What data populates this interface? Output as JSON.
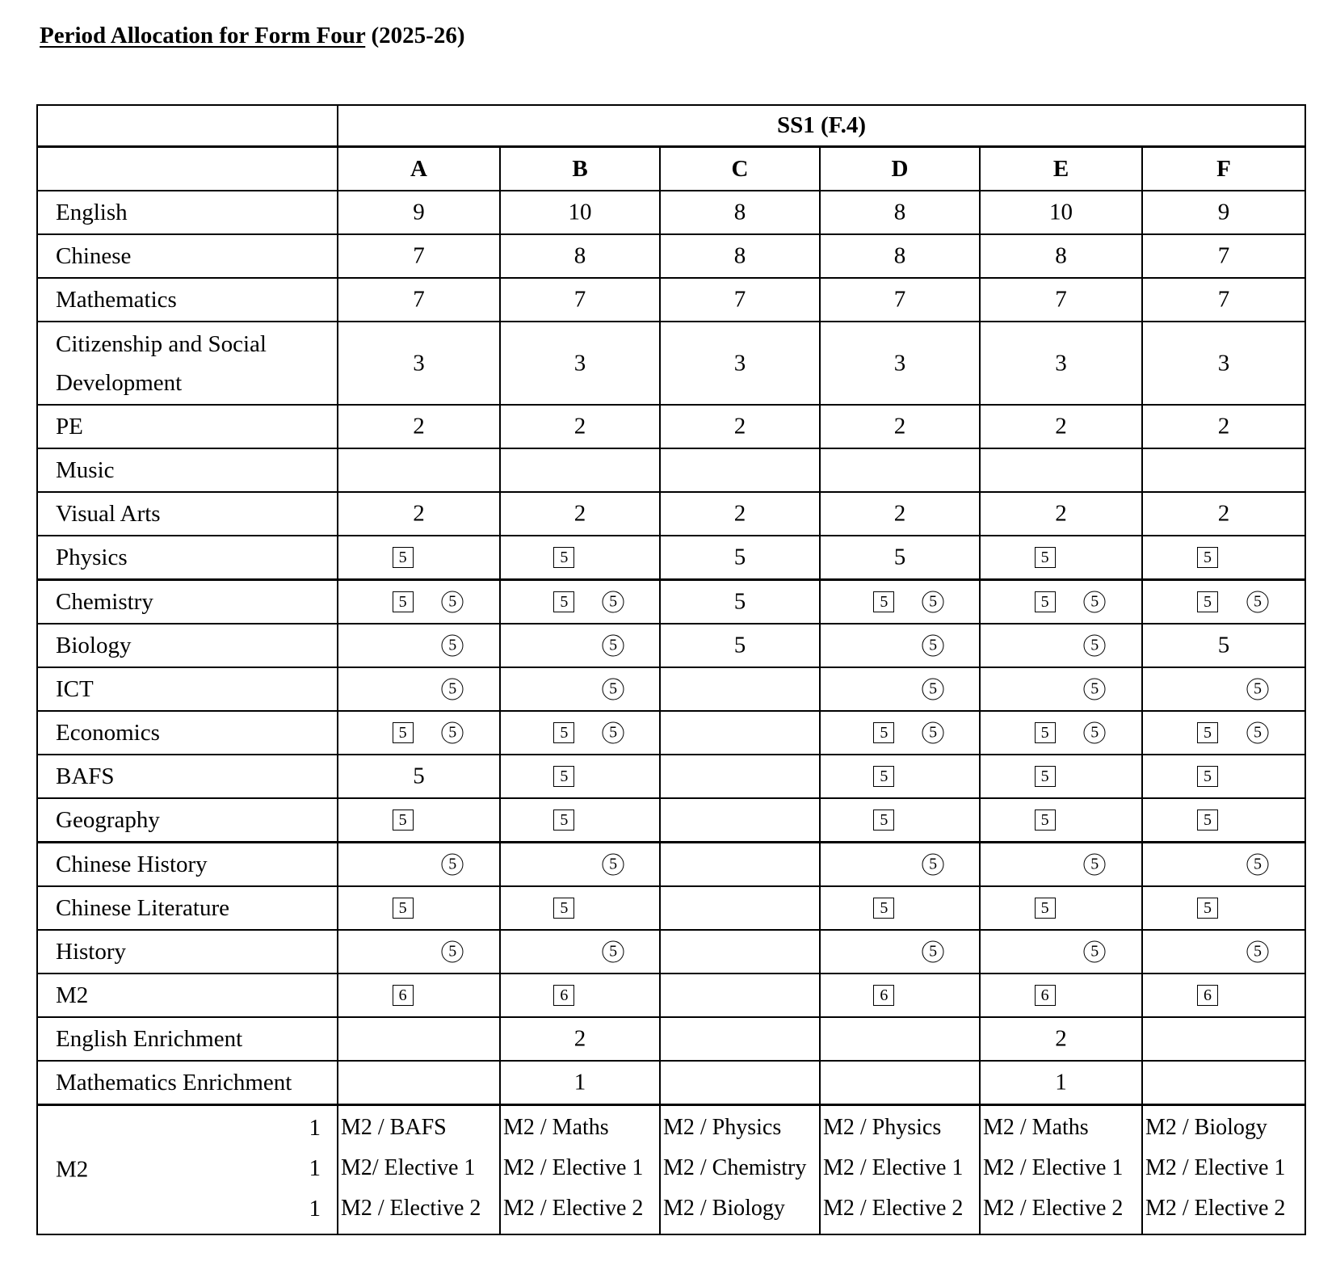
{
  "title": {
    "underlined": "Period Allocation for Form Four",
    "suffix": " (2025-26)"
  },
  "table": {
    "group_header": "SS1 (F.4)",
    "columns": [
      "A",
      "B",
      "C",
      "D",
      "E",
      "F"
    ],
    "legend_markers": {
      "box": "square-boxed number",
      "circle": "circled number"
    },
    "rows": [
      {
        "subject": "English",
        "cells": [
          "9",
          "10",
          "8",
          "8",
          "10",
          "9"
        ]
      },
      {
        "subject": "Chinese",
        "cells": [
          "7",
          "8",
          "8",
          "8",
          "8",
          "7"
        ]
      },
      {
        "subject": "Mathematics",
        "cells": [
          "7",
          "7",
          "7",
          "7",
          "7",
          "7"
        ]
      },
      {
        "subject": "Citizenship and Social Development",
        "cells": [
          "3",
          "3",
          "3",
          "3",
          "3",
          "3"
        ],
        "tall": true
      },
      {
        "subject": "PE",
        "cells": [
          "2",
          "2",
          "2",
          "2",
          "2",
          "2"
        ]
      },
      {
        "subject": "Music",
        "cells": [
          "",
          "",
          "",
          "",
          "",
          ""
        ]
      },
      {
        "subject": "Visual Arts",
        "cells": [
          "2",
          "2",
          "2",
          "2",
          "2",
          "2"
        ]
      },
      {
        "subject": "Physics",
        "cells": [
          {
            "box": "5"
          },
          {
            "box": "5"
          },
          "5",
          "5",
          {
            "box": "5"
          },
          {
            "box": "5"
          }
        ]
      },
      {
        "subject": "Chemistry",
        "thick": true,
        "cells": [
          {
            "box": "5",
            "circle": "5"
          },
          {
            "box": "5",
            "circle": "5"
          },
          "5",
          {
            "box": "5",
            "circle": "5"
          },
          {
            "box": "5",
            "circle": "5"
          },
          {
            "box": "5",
            "circle": "5"
          }
        ]
      },
      {
        "subject": "Biology",
        "cells": [
          {
            "circle": "5"
          },
          {
            "circle": "5"
          },
          "5",
          {
            "circle": "5"
          },
          {
            "circle": "5"
          },
          "5"
        ]
      },
      {
        "subject": "ICT",
        "cells": [
          {
            "circle": "5"
          },
          {
            "circle": "5"
          },
          "",
          {
            "circle": "5"
          },
          {
            "circle": "5"
          },
          {
            "circle": "5"
          }
        ]
      },
      {
        "subject": "Economics",
        "cells": [
          {
            "box": "5",
            "circle": "5"
          },
          {
            "box": "5",
            "circle": "5"
          },
          "",
          {
            "box": "5",
            "circle": "5"
          },
          {
            "box": "5",
            "circle": "5"
          },
          {
            "box": "5",
            "circle": "5"
          }
        ]
      },
      {
        "subject": "BAFS",
        "cells": [
          "5",
          {
            "box": "5"
          },
          "",
          {
            "box": "5"
          },
          {
            "box": "5"
          },
          {
            "box": "5"
          }
        ]
      },
      {
        "subject": "Geography",
        "cells": [
          {
            "box": "5"
          },
          {
            "box": "5"
          },
          "",
          {
            "box": "5"
          },
          {
            "box": "5"
          },
          {
            "box": "5"
          }
        ]
      },
      {
        "subject": "Chinese History",
        "thick": true,
        "cells": [
          {
            "circle": "5"
          },
          {
            "circle": "5"
          },
          "",
          {
            "circle": "5"
          },
          {
            "circle": "5"
          },
          {
            "circle": "5"
          }
        ]
      },
      {
        "subject": "Chinese Literature",
        "cells": [
          {
            "box": "5"
          },
          {
            "box": "5"
          },
          "",
          {
            "box": "5"
          },
          {
            "box": "5"
          },
          {
            "box": "5"
          }
        ]
      },
      {
        "subject": "History",
        "cells": [
          {
            "circle": "5"
          },
          {
            "circle": "5"
          },
          "",
          {
            "circle": "5"
          },
          {
            "circle": "5"
          },
          {
            "circle": "5"
          }
        ]
      },
      {
        "subject": "M2",
        "cells": [
          {
            "box": "6"
          },
          {
            "box": "6"
          },
          "",
          {
            "box": "6"
          },
          {
            "box": "6"
          },
          {
            "box": "6"
          }
        ]
      },
      {
        "subject": "English Enrichment",
        "cells": [
          "",
          "2",
          "",
          "",
          "2",
          ""
        ]
      },
      {
        "subject": "Mathematics Enrichment",
        "cells": [
          "",
          "1",
          "",
          "",
          "1",
          ""
        ]
      }
    ],
    "m2_block": {
      "label": "M2",
      "periods": [
        "1",
        "1",
        "1"
      ],
      "options": [
        [
          "M2 / BAFS",
          "M2/ Elective 1",
          "M2 / Elective 2"
        ],
        [
          "M2 / Maths",
          "M2 / Elective 1",
          "M2 / Elective 2"
        ],
        [
          "M2 / Physics",
          "M2 / Chemistry",
          "M2 / Biology"
        ],
        [
          "M2 / Physics",
          "M2 / Elective 1",
          "M2 / Elective 2"
        ],
        [
          "M2 / Maths",
          "M2 / Elective 1",
          "M2 / Elective 2"
        ],
        [
          "M2 / Biology",
          "M2 / Elective 1",
          "M2 / Elective 2"
        ]
      ]
    }
  }
}
